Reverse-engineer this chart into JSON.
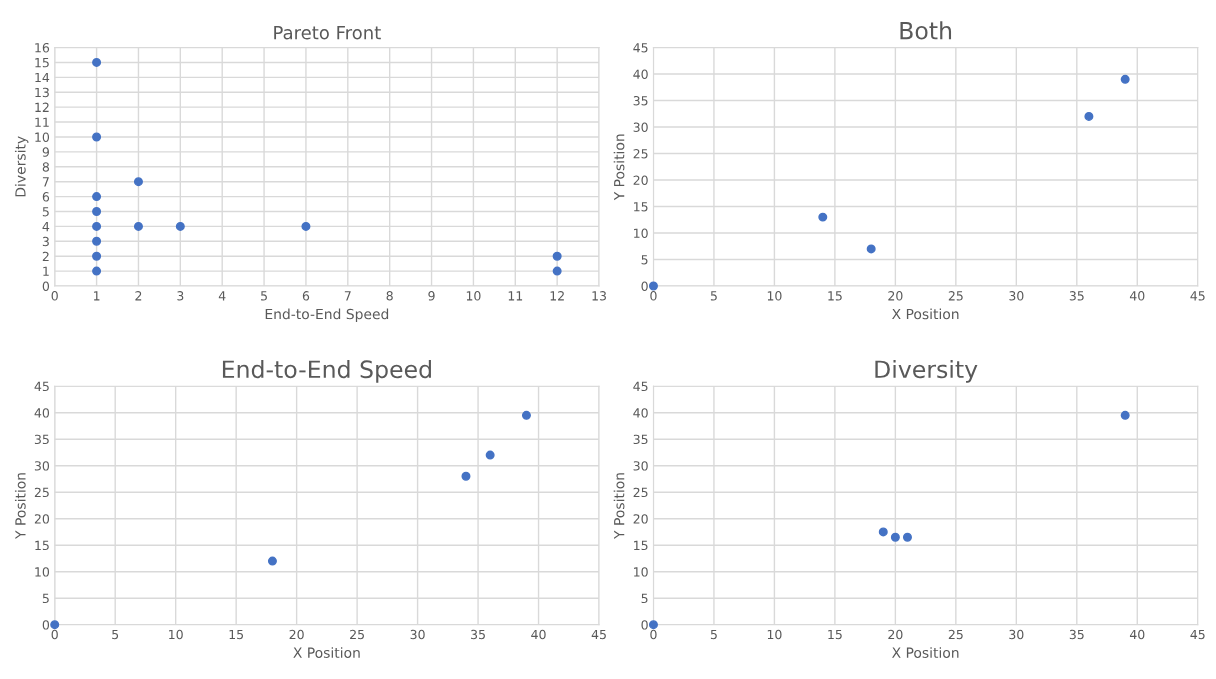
{
  "chart_data": [
    {
      "type": "scatter",
      "title": "Pareto Front",
      "xlabel": "End-to-End Speed",
      "ylabel": "Diversity",
      "xlim": [
        0,
        13
      ],
      "xticks": [
        0,
        1,
        2,
        3,
        4,
        5,
        6,
        7,
        8,
        9,
        10,
        11,
        12,
        13
      ],
      "ylim": [
        0,
        16
      ],
      "yticks": [
        0,
        1,
        2,
        3,
        4,
        5,
        6,
        7,
        8,
        9,
        10,
        11,
        12,
        13,
        14,
        15,
        16
      ],
      "grid": true,
      "marker": "circle",
      "series": [
        {
          "color": "#4472c4",
          "x": [
            1,
            1,
            1,
            1,
            1,
            1,
            1,
            1,
            2,
            2,
            3,
            6,
            12,
            12
          ],
          "values": [
            15,
            10,
            6,
            5,
            4,
            3,
            2,
            1,
            7,
            4,
            4,
            4,
            2,
            1
          ]
        }
      ]
    },
    {
      "type": "scatter",
      "title": "Both",
      "xlabel": "X Position",
      "ylabel": "Y Position",
      "xlim": [
        0,
        45
      ],
      "xticks": [
        0,
        5,
        10,
        15,
        20,
        25,
        30,
        35,
        40,
        45
      ],
      "ylim": [
        0,
        45
      ],
      "yticks": [
        0,
        5,
        10,
        15,
        20,
        25,
        30,
        35,
        40,
        45
      ],
      "grid": true,
      "marker": "circle",
      "series": [
        {
          "color": "#4472c4",
          "x": [
            0,
            14,
            18,
            36,
            39
          ],
          "values": [
            0,
            13,
            7,
            32,
            39
          ]
        }
      ]
    },
    {
      "type": "scatter",
      "title": "End-to-End Speed",
      "xlabel": "X Position",
      "ylabel": "Y Position",
      "xlim": [
        0,
        45
      ],
      "xticks": [
        0,
        5,
        10,
        15,
        20,
        25,
        30,
        35,
        40,
        45
      ],
      "ylim": [
        0,
        45
      ],
      "yticks": [
        0,
        5,
        10,
        15,
        20,
        25,
        30,
        35,
        40,
        45
      ],
      "grid": true,
      "marker": "circle",
      "series": [
        {
          "color": "#4472c4",
          "x": [
            0,
            18,
            34,
            36,
            39
          ],
          "values": [
            0,
            12,
            28,
            32,
            39.5
          ]
        }
      ]
    },
    {
      "type": "scatter",
      "title": "Diversity",
      "xlabel": "X Position",
      "ylabel": "Y Position",
      "xlim": [
        0,
        45
      ],
      "xticks": [
        0,
        5,
        10,
        15,
        20,
        25,
        30,
        35,
        40,
        45
      ],
      "ylim": [
        0,
        45
      ],
      "yticks": [
        0,
        5,
        10,
        15,
        20,
        25,
        30,
        35,
        40,
        45
      ],
      "grid": true,
      "marker": "circle",
      "series": [
        {
          "color": "#4472c4",
          "x": [
            0,
            19,
            20,
            21,
            39
          ],
          "values": [
            0,
            17.5,
            16.5,
            16.5,
            39.5
          ]
        }
      ]
    }
  ]
}
